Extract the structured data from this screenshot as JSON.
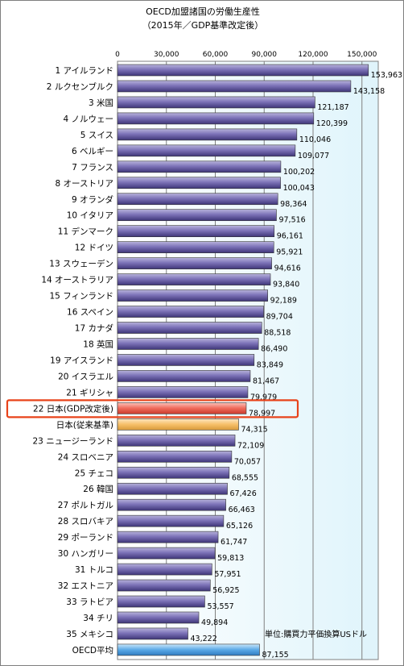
{
  "chart_data": {
    "type": "bar",
    "orientation": "horizontal",
    "title": "OECD加盟諸国の労働生産性",
    "subtitle": "（2015年／GDP基準改定後）",
    "unit_note": "単位:購買力平価換算USドル",
    "xlim": [
      0,
      160000
    ],
    "xticks": [
      "0",
      "30,000",
      "60,000",
      "90,000",
      "120,000",
      "150,000"
    ],
    "xtick_values": [
      0,
      30000,
      60000,
      90000,
      120000,
      150000
    ],
    "grid": true,
    "categories": [
      "1 アイルランド",
      "2 ルクセンブルク",
      "3 米国",
      "4 ノルウェー",
      "5 スイス",
      "6 ベルギー",
      "7 フランス",
      "8 オーストリア",
      "9 オランダ",
      "10 イタリア",
      "11 デンマーク",
      "12 ドイツ",
      "13 スウェーデン",
      "14 オーストラリア",
      "15 フィンランド",
      "16 スペイン",
      "17 カナダ",
      "18 英国",
      "19 アイスランド",
      "20 イスラエル",
      "21 ギリシャ",
      "22 日本(GDP改定後)",
      "日本(従来基準)",
      "23 ニュージーランド",
      "24 スロベニア",
      "25 チェコ",
      "26 韓国",
      "27 ポルトガル",
      "28 スロバキア",
      "29 ポーランド",
      "30 ハンガリー",
      "31 トルコ",
      "32 エストニア",
      "33 ラトビア",
      "34 チリ",
      "35 メキシコ",
      "OECD平均"
    ],
    "values": [
      153963,
      143158,
      121187,
      120399,
      110046,
      109077,
      100202,
      100043,
      98364,
      97516,
      96161,
      95921,
      94616,
      93840,
      92189,
      89704,
      88518,
      86490,
      83849,
      81467,
      79979,
      78997,
      74315,
      72109,
      70057,
      68555,
      67426,
      66463,
      65126,
      61747,
      59813,
      57951,
      56925,
      53557,
      49894,
      43222,
      87155
    ],
    "value_labels": [
      "153,963",
      "143,158",
      "121,187",
      "120,399",
      "110,046",
      "109,077",
      "100,202",
      "100,043",
      "98,364",
      "97,516",
      "96,161",
      "95,921",
      "94,616",
      "93,840",
      "92,189",
      "89,704",
      "88,518",
      "86,490",
      "83,849",
      "81,467",
      "79,979",
      "78,997",
      "74,315",
      "72,109",
      "70,057",
      "68,555",
      "67,426",
      "66,463",
      "65,126",
      "61,747",
      "59,813",
      "57,951",
      "56,925",
      "53,557",
      "49,894",
      "43,222",
      "87,155"
    ],
    "highlight_index": 21,
    "colors": {
      "default_bar": "#6b5fa6",
      "japan_revised_bar": "#f06a5a",
      "japan_old_bar": "#f7c06a",
      "oecd_bar": "#5aa9e6",
      "highlight_box": "#e8431a",
      "plot_background_end": "#dff4fb"
    }
  }
}
